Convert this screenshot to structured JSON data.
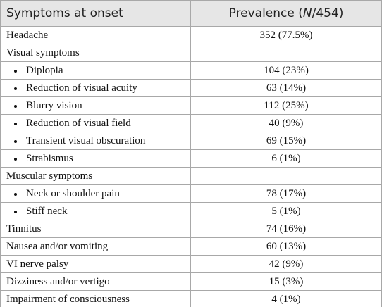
{
  "table": {
    "header": [
      "Symptoms at onset",
      [
        "Prevalence (",
        "N",
        "/454)"
      ]
    ],
    "rows": [
      {
        "label": "Headache",
        "value": "352 (77.5%)"
      },
      {
        "label": "Visual symptoms",
        "items": [
          {
            "label": "Diplopia",
            "value": "104 (23%)"
          },
          {
            "label": "Reduction of visual acuity",
            "value": "63 (14%)"
          },
          {
            "label": "Blurry vision",
            "value": "112 (25%)"
          },
          {
            "label": "Reduction of visual field",
            "value": "40 (9%)"
          },
          {
            "label": "Transient visual obscuration",
            "value": "69 (15%)"
          },
          {
            "label": "Strabismus",
            "value": "6 (1%)"
          }
        ]
      },
      {
        "label": "Muscular symptoms",
        "items": [
          {
            "label": "Neck or shoulder pain",
            "value": "78 (17%)"
          },
          {
            "label": "Stiff neck",
            "value": "5 (1%)"
          }
        ]
      },
      {
        "label": "Tinnitus",
        "value": "74 (16%)"
      },
      {
        "label": "Nausea and/or vomiting",
        "value": "60 (13%)"
      },
      {
        "label": "VI nerve palsy",
        "value": "42 (9%)"
      },
      {
        "label": "Dizziness and/or vertigo",
        "value": "15 (3%)"
      },
      {
        "label": "Impairment of consciousness",
        "value": "4 (1%)"
      }
    ]
  }
}
